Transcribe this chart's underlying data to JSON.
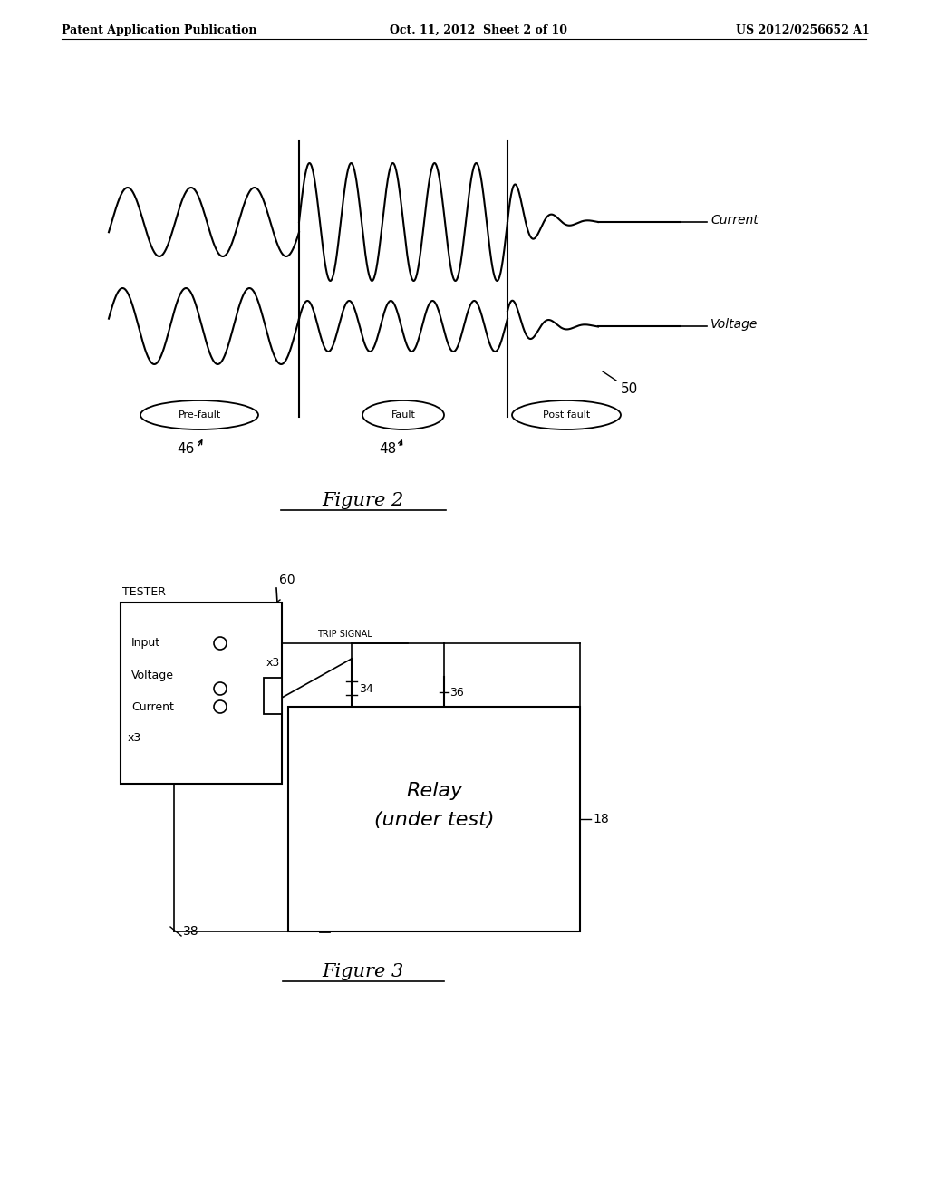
{
  "bg_color": "#ffffff",
  "header_left": "Patent Application Publication",
  "header_center": "Oct. 11, 2012  Sheet 2 of 10",
  "header_right": "US 2012/0256652 A1",
  "fig2_title": "Figure 2",
  "fig3_title": "Figure 3",
  "current_label": "Current",
  "voltage_label": "Voltage",
  "prefault_label": "Pre-fault",
  "fault_label": "Fault",
  "postfault_label": "Post fault",
  "label_46": "46",
  "label_48": "48",
  "label_50": "50",
  "label_60": "60",
  "tester_label": "TESTER",
  "input_label": "Input",
  "voltage_label_box": "Voltage",
  "current_label_box": "Current",
  "x3_label_1": "x3",
  "x3_label_2": "x3",
  "trip_signal_label": "TRIP SIGNAL",
  "relay_label": "Relay\n(under test)",
  "label_34": "34",
  "label_36": "36",
  "label_38": "38",
  "label_18": "18"
}
